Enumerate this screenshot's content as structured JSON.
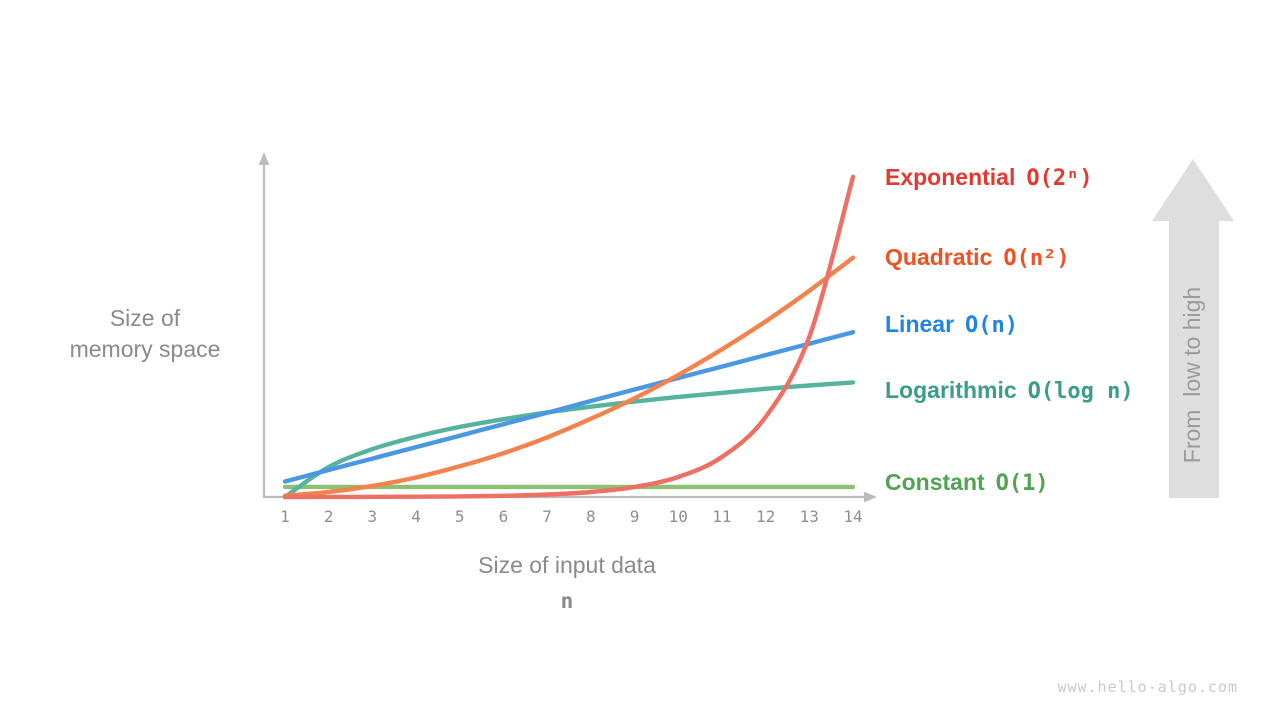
{
  "page": {
    "watermark": "www.hello-algo.com",
    "background_color": "#ffffff"
  },
  "axes": {
    "y_label_line1": "Size of",
    "y_label_line2": "memory space",
    "x_label": "Size of input data",
    "x_sublabel": "n",
    "axis_color": "#bcbcbc",
    "tick_color": "#8f8f8f"
  },
  "side_arrow": {
    "label": "From  low to high",
    "fill_color": "#dedede",
    "text_color": "#9b9b9b"
  },
  "chart_data": {
    "type": "line",
    "title": "",
    "xlabel": "Size of input data (n)",
    "ylabel": "Size of memory space",
    "x": [
      1,
      2,
      3,
      4,
      5,
      6,
      7,
      8,
      9,
      10,
      11,
      12,
      13,
      14
    ],
    "ylim": [
      0,
      1
    ],
    "y_units": "relative height of plot area (unlabeled axis)",
    "grid": false,
    "legend_position": "right",
    "series": [
      {
        "id": "exponential",
        "name": "Exponential",
        "formula": "O(2ⁿ)",
        "label_color": "#e3392e",
        "curve_color": "#ee6f63",
        "values": [
          0.0001,
          0.0002,
          0.0005,
          0.0009,
          0.0019,
          0.0037,
          0.0074,
          0.0148,
          0.0297,
          0.0594,
          0.1188,
          0.2375,
          0.475,
          0.95
        ]
      },
      {
        "id": "quadratic",
        "name": "Quadratic",
        "formula": "O(n²)",
        "label_color": "#f05123",
        "curve_color": "#f4824d",
        "values": [
          0.004,
          0.015,
          0.033,
          0.058,
          0.091,
          0.13,
          0.177,
          0.232,
          0.293,
          0.362,
          0.438,
          0.521,
          0.612,
          0.71
        ]
      },
      {
        "id": "linear",
        "name": "Linear",
        "formula": "O(n)",
        "label_color": "#1e86e0",
        "curve_color": "#4a97e4",
        "values": [
          0.046,
          0.08,
          0.114,
          0.148,
          0.182,
          0.216,
          0.25,
          0.285,
          0.319,
          0.353,
          0.387,
          0.421,
          0.455,
          0.489
        ]
      },
      {
        "id": "logarithmic",
        "name": "Logarithmic",
        "formula": "O(log n)",
        "label_color": "#3a9d89",
        "curve_color": "#55b39f",
        "values": [
          0.0,
          0.089,
          0.142,
          0.179,
          0.208,
          0.231,
          0.251,
          0.268,
          0.283,
          0.297,
          0.309,
          0.321,
          0.331,
          0.34
        ]
      },
      {
        "id": "constant",
        "name": "Constant",
        "formula": "O(1)",
        "label_color": "#4fa351",
        "curve_color": "#8cc173",
        "values": [
          0.03,
          0.03,
          0.03,
          0.03,
          0.03,
          0.03,
          0.03,
          0.03,
          0.03,
          0.03,
          0.03,
          0.03,
          0.03,
          0.03
        ]
      }
    ]
  }
}
